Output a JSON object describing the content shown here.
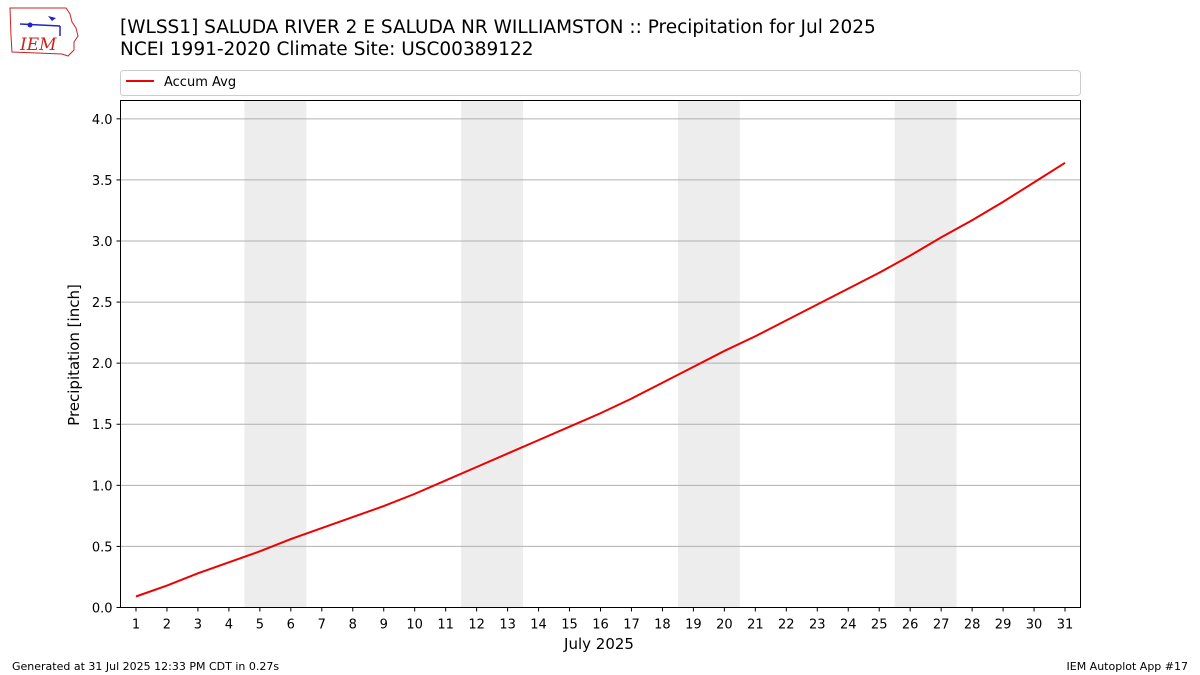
{
  "header": {
    "title_line1": "[WLSS1] SALUDA RIVER 2 E SALUDA NR WILLIAMSTON :: Precipitation for Jul 2025",
    "title_line2": "NCEI 1991-2020 Climate Site: USC00389122"
  },
  "logo": {
    "text": "IEM",
    "icon": "iem-logo-icon"
  },
  "footer": {
    "left": "Generated at 31 Jul 2025 12:33 PM CDT in 0.27s",
    "right": "IEM Autoplot App #17"
  },
  "colors": {
    "line": "#ee0000",
    "weekend_shade": "#ededed",
    "grid": "#b0b0b0",
    "logo": "#cc2222",
    "logo_icon": "#2222cc"
  },
  "chart_data": {
    "type": "line",
    "title": "[WLSS1] SALUDA RIVER 2 E SALUDA NR WILLIAMSTON :: Precipitation for Jul 2025",
    "subtitle": "NCEI 1991-2020 Climate Site: USC00389122",
    "xlabel": "July 2025",
    "ylabel": "Precipitation [inch]",
    "x": [
      1,
      2,
      3,
      4,
      5,
      6,
      7,
      8,
      9,
      10,
      11,
      12,
      13,
      14,
      15,
      16,
      17,
      18,
      19,
      20,
      21,
      22,
      23,
      24,
      25,
      26,
      27,
      28,
      29,
      30,
      31
    ],
    "x_ticks": [
      "1",
      "2",
      "3",
      "4",
      "5",
      "6",
      "7",
      "8",
      "9",
      "10",
      "11",
      "12",
      "13",
      "14",
      "15",
      "16",
      "17",
      "18",
      "19",
      "20",
      "21",
      "22",
      "23",
      "24",
      "25",
      "26",
      "27",
      "28",
      "29",
      "30",
      "31"
    ],
    "y_ticks": [
      "0.0",
      "0.5",
      "1.0",
      "1.5",
      "2.0",
      "2.5",
      "3.0",
      "3.5",
      "4.0"
    ],
    "xlim": [
      0.5,
      31.5
    ],
    "ylim": [
      0,
      4.15
    ],
    "grid": "y-major",
    "legend": {
      "position": "top",
      "entries": [
        "Accum Avg"
      ]
    },
    "shaded_weekends": [
      [
        4.5,
        6.5
      ],
      [
        11.5,
        13.5
      ],
      [
        18.5,
        20.5
      ],
      [
        25.5,
        27.5
      ]
    ],
    "series": [
      {
        "name": "Accum Avg",
        "color": "#ee0000",
        "values": [
          0.09,
          0.18,
          0.28,
          0.37,
          0.46,
          0.56,
          0.65,
          0.74,
          0.83,
          0.93,
          1.04,
          1.15,
          1.26,
          1.37,
          1.48,
          1.59,
          1.71,
          1.84,
          1.97,
          2.1,
          2.22,
          2.35,
          2.48,
          2.61,
          2.74,
          2.88,
          3.03,
          3.17,
          3.32,
          3.48,
          3.64
        ]
      }
    ]
  }
}
